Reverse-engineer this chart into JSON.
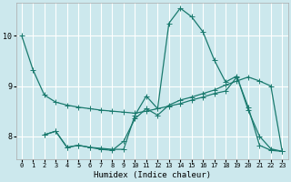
{
  "xlabel": "Humidex (Indice chaleur)",
  "background_color": "#cce8ed",
  "grid_color": "#ffffff",
  "line_color": "#1a7a6e",
  "xlim": [
    -0.5,
    23.5
  ],
  "ylim": [
    7.55,
    10.65
  ],
  "yticks": [
    8,
    9,
    10
  ],
  "xticks": [
    0,
    1,
    2,
    3,
    4,
    5,
    6,
    7,
    8,
    9,
    10,
    11,
    12,
    13,
    14,
    15,
    16,
    17,
    18,
    19,
    20,
    21,
    22,
    23
  ],
  "line1_x": [
    0,
    1,
    2,
    3,
    4,
    5,
    6,
    7,
    8,
    9,
    10,
    11,
    12,
    13,
    14,
    15,
    16,
    17,
    18,
    19,
    20,
    21,
    22,
    23
  ],
  "line1_y": [
    10.0,
    9.32,
    8.82,
    8.68,
    8.62,
    8.58,
    8.55,
    8.52,
    8.5,
    8.48,
    8.46,
    8.5,
    8.55,
    8.6,
    8.65,
    8.72,
    8.78,
    8.85,
    8.9,
    9.18,
    8.58,
    7.82,
    7.72,
    7.7
  ],
  "line2_x": [
    2,
    3,
    4,
    5,
    6,
    7,
    8,
    9,
    10,
    11,
    12,
    13,
    14,
    15,
    16,
    17,
    18,
    19,
    20,
    21,
    22,
    23
  ],
  "line2_y": [
    8.03,
    8.1,
    7.78,
    7.82,
    7.78,
    7.76,
    7.74,
    7.74,
    8.42,
    8.8,
    8.55,
    10.25,
    10.55,
    10.38,
    10.08,
    9.52,
    9.08,
    9.2,
    8.52,
    8.0,
    7.75,
    7.7
  ],
  "line3_x": [
    2,
    3,
    4,
    5,
    6,
    7,
    8,
    9,
    10,
    11,
    12,
    13,
    14,
    15,
    16,
    17,
    18,
    19,
    20,
    21,
    22,
    23
  ],
  "line3_y": [
    8.03,
    8.1,
    7.78,
    7.82,
    7.78,
    7.74,
    7.72,
    7.9,
    8.35,
    8.55,
    8.42,
    8.62,
    8.72,
    8.78,
    8.85,
    8.92,
    9.02,
    9.1,
    9.18,
    9.1,
    9.0,
    7.7
  ],
  "marker_size": 2.2,
  "line_width": 0.9
}
